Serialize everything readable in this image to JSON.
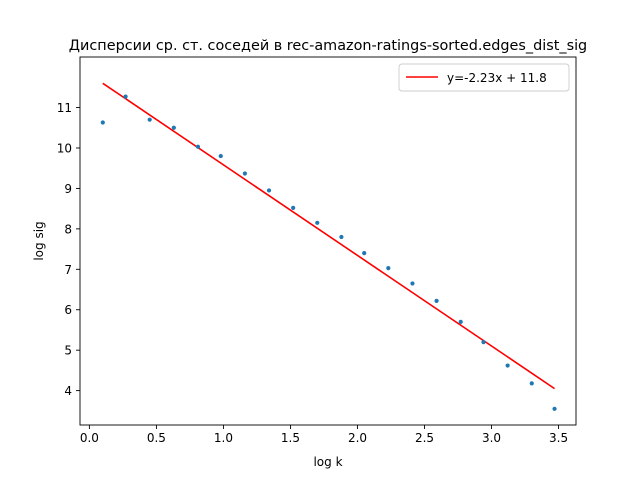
{
  "chart_data": {
    "type": "scatter",
    "title": "Дисперсии ср. ст. соседей в rec-amazon-ratings-sorted.edges_dist_sig",
    "xlabel": "log k",
    "ylabel": "log sig",
    "xlim": [
      -0.07,
      3.63
    ],
    "ylim": [
      3.15,
      12.25
    ],
    "xticks": [
      0.0,
      0.5,
      1.0,
      1.5,
      2.0,
      2.5,
      3.0,
      3.5
    ],
    "xtick_labels": [
      "0.0",
      "0.5",
      "1.0",
      "1.5",
      "2.0",
      "2.5",
      "3.0",
      "3.5"
    ],
    "yticks": [
      4,
      5,
      6,
      7,
      8,
      9,
      10,
      11
    ],
    "ytick_labels": [
      "4",
      "5",
      "6",
      "7",
      "8",
      "9",
      "10",
      "11"
    ],
    "grid": false,
    "legend_position": "top-right",
    "series": [
      {
        "kind": "points",
        "color": "#1f77b4",
        "x": [
          0.1,
          0.27,
          0.45,
          0.63,
          0.81,
          0.98,
          1.16,
          1.34,
          1.52,
          1.7,
          1.88,
          2.05,
          2.23,
          2.41,
          2.59,
          2.77,
          2.94,
          3.12,
          3.3,
          3.47
        ],
        "y": [
          10.63,
          11.27,
          10.7,
          10.5,
          10.03,
          9.8,
          9.37,
          8.95,
          8.52,
          8.15,
          7.8,
          7.4,
          7.03,
          6.65,
          6.22,
          5.7,
          5.2,
          4.62,
          4.18,
          3.55
        ]
      },
      {
        "kind": "line",
        "name": "y=-2.23x + 11.8",
        "color": "#ff0000",
        "x": [
          0.1,
          3.47
        ],
        "y": [
          11.6,
          4.05
        ]
      }
    ]
  }
}
